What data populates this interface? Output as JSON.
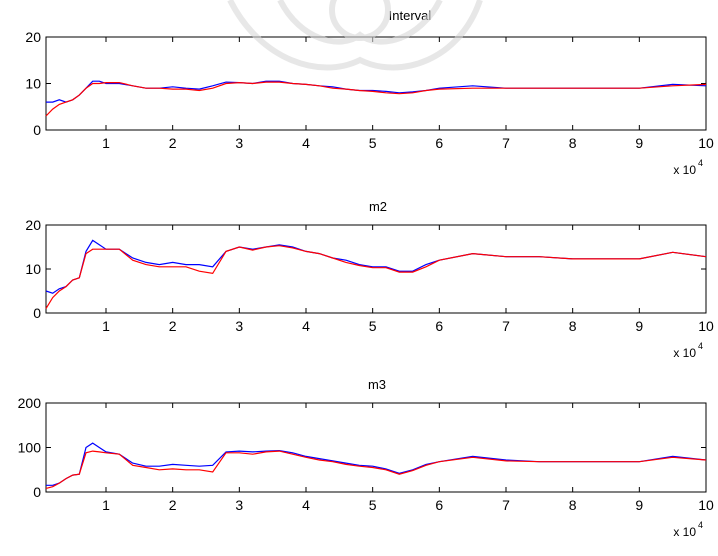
{
  "colors": {
    "series_blue": "#0000ff",
    "series_red": "#ff0000",
    "axes": "#000000",
    "watermark": "#d8d8d8"
  },
  "chart_data": [
    {
      "type": "line",
      "title": "Interval",
      "xlim": [
        1000,
        100000
      ],
      "ylim": [
        0,
        20
      ],
      "xticks": [
        1,
        2,
        3,
        4,
        5,
        6,
        7,
        8,
        9,
        10
      ],
      "yticks": [
        0,
        10,
        20
      ],
      "x_multiplier": "x 10",
      "x_multiplier_exp": "4",
      "grid": false,
      "x": [
        1000,
        2000,
        3000,
        4000,
        5000,
        6000,
        7000,
        8000,
        9000,
        10000,
        12000,
        14000,
        16000,
        18000,
        20000,
        22000,
        24000,
        26000,
        28000,
        30000,
        32000,
        34000,
        36000,
        38000,
        40000,
        42000,
        44000,
        46000,
        48000,
        50000,
        52000,
        54000,
        56000,
        58000,
        60000,
        65000,
        70000,
        75000,
        80000,
        85000,
        90000,
        95000,
        100000
      ],
      "series": [
        {
          "values": [
            6.0,
            6.0,
            6.5,
            6.0,
            6.5,
            7.5,
            9.0,
            10.5,
            10.5,
            10.0,
            10.0,
            9.5,
            9.0,
            9.0,
            9.3,
            9.0,
            8.8,
            9.5,
            10.3,
            10.2,
            10.0,
            10.5,
            10.5,
            10.0,
            9.8,
            9.5,
            9.3,
            8.8,
            8.5,
            8.5,
            8.3,
            8.0,
            8.2,
            8.5,
            9.0,
            9.5,
            9.0,
            9.0,
            9.0,
            9.0,
            9.0,
            9.8,
            9.5
          ]
        },
        {
          "values": [
            3.0,
            4.5,
            5.5,
            6.0,
            6.5,
            7.5,
            9.0,
            10.0,
            10.0,
            10.2,
            10.2,
            9.5,
            9.0,
            9.0,
            8.8,
            8.8,
            8.5,
            9.0,
            10.0,
            10.2,
            10.0,
            10.3,
            10.3,
            10.0,
            9.8,
            9.5,
            9.0,
            8.8,
            8.5,
            8.3,
            8.0,
            7.8,
            8.0,
            8.5,
            8.8,
            9.0,
            9.0,
            9.0,
            9.0,
            9.0,
            9.0,
            9.5,
            9.8
          ]
        }
      ]
    },
    {
      "type": "line",
      "title": "m2",
      "xlim": [
        1000,
        100000
      ],
      "ylim": [
        0,
        20
      ],
      "xticks": [
        1,
        2,
        3,
        4,
        5,
        6,
        7,
        8,
        9,
        10
      ],
      "yticks": [
        0,
        10,
        20
      ],
      "x_multiplier": "x 10",
      "x_multiplier_exp": "4",
      "grid": false,
      "x": [
        1000,
        2000,
        3000,
        4000,
        5000,
        6000,
        7000,
        8000,
        9000,
        10000,
        12000,
        14000,
        16000,
        18000,
        20000,
        22000,
        24000,
        26000,
        28000,
        30000,
        32000,
        34000,
        36000,
        38000,
        40000,
        42000,
        44000,
        46000,
        48000,
        50000,
        52000,
        54000,
        56000,
        58000,
        60000,
        65000,
        70000,
        75000,
        80000,
        85000,
        90000,
        95000,
        100000
      ],
      "series": [
        {
          "values": [
            5.0,
            4.5,
            5.5,
            6.0,
            7.5,
            8.0,
            14.0,
            16.5,
            15.5,
            14.5,
            14.5,
            12.5,
            11.5,
            11.0,
            11.5,
            11.0,
            11.0,
            10.5,
            14.0,
            15.0,
            14.5,
            15.0,
            15.5,
            15.0,
            14.0,
            13.5,
            12.5,
            12.0,
            11.0,
            10.5,
            10.5,
            9.5,
            9.5,
            11.0,
            12.0,
            13.5,
            12.8,
            12.8,
            12.3,
            12.3,
            12.3,
            13.8,
            12.8
          ]
        },
        {
          "values": [
            1.0,
            3.5,
            5.0,
            6.0,
            7.5,
            8.0,
            13.5,
            14.5,
            14.5,
            14.5,
            14.5,
            12.0,
            11.0,
            10.5,
            10.5,
            10.5,
            9.5,
            9.0,
            14.0,
            15.0,
            14.3,
            15.0,
            15.3,
            14.8,
            14.0,
            13.5,
            12.5,
            11.5,
            10.8,
            10.3,
            10.3,
            9.3,
            9.3,
            10.5,
            12.0,
            13.5,
            12.8,
            12.8,
            12.3,
            12.3,
            12.3,
            13.8,
            12.8
          ]
        }
      ]
    },
    {
      "type": "line",
      "title": "m3",
      "xlim": [
        1000,
        100000
      ],
      "ylim": [
        0,
        200
      ],
      "xticks": [
        1,
        2,
        3,
        4,
        5,
        6,
        7,
        8,
        9,
        10
      ],
      "yticks": [
        0,
        100,
        200
      ],
      "x_multiplier": "x 10",
      "x_multiplier_exp": "4",
      "grid": false,
      "x": [
        1000,
        2000,
        3000,
        4000,
        5000,
        6000,
        7000,
        8000,
        9000,
        10000,
        12000,
        14000,
        16000,
        18000,
        20000,
        22000,
        24000,
        26000,
        28000,
        30000,
        32000,
        34000,
        36000,
        38000,
        40000,
        42000,
        44000,
        46000,
        48000,
        50000,
        52000,
        54000,
        56000,
        58000,
        60000,
        65000,
        70000,
        75000,
        80000,
        85000,
        90000,
        95000,
        100000
      ],
      "series": [
        {
          "values": [
            15,
            15,
            20,
            30,
            38,
            40,
            100,
            110,
            100,
            90,
            85,
            65,
            58,
            58,
            62,
            60,
            58,
            60,
            90,
            92,
            90,
            92,
            93,
            88,
            80,
            75,
            70,
            65,
            60,
            58,
            52,
            42,
            50,
            62,
            68,
            80,
            72,
            68,
            68,
            68,
            68,
            80,
            72
          ]
        },
        {
          "values": [
            8,
            12,
            20,
            30,
            38,
            40,
            88,
            92,
            90,
            88,
            85,
            60,
            55,
            50,
            52,
            50,
            50,
            45,
            88,
            88,
            85,
            90,
            92,
            85,
            78,
            72,
            68,
            62,
            58,
            55,
            50,
            40,
            48,
            60,
            68,
            78,
            70,
            68,
            68,
            68,
            68,
            78,
            72
          ]
        }
      ]
    }
  ]
}
